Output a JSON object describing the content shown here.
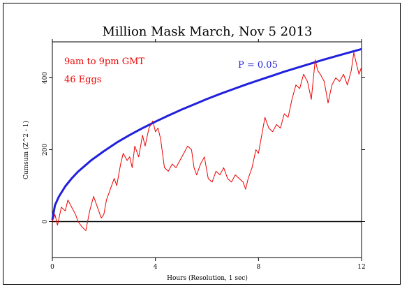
{
  "chart_data": {
    "type": "line",
    "title": "Million Mask March, Nov 5 2013",
    "xlabel": "Hours (Resolution, 1 sec)",
    "ylabel": "Cumsum (Z^2 - 1)",
    "xlim": [
      0,
      12
    ],
    "ylim": [
      -100,
      500
    ],
    "x_ticks": [
      0,
      4,
      8,
      12
    ],
    "y_ticks": [
      0,
      200,
      400
    ],
    "annotations": [
      "9am to 9pm GMT",
      "46 Eggs"
    ],
    "grid": false,
    "series": [
      {
        "name": "P = 0.05",
        "color": "#2020dd",
        "x": [
          0,
          0.1,
          0.25,
          0.5,
          0.75,
          1,
          1.5,
          2,
          2.5,
          3,
          3.5,
          4,
          4.5,
          5,
          5.5,
          6,
          6.5,
          7,
          7.5,
          8,
          8.5,
          9,
          9.5,
          10,
          10.5,
          11,
          11.5,
          12
        ],
        "y": [
          5,
          45,
          69,
          98,
          120,
          139,
          170,
          196,
          220,
          241,
          260,
          278,
          295,
          311,
          326,
          341,
          355,
          368,
          381,
          393,
          405,
          417,
          428,
          439,
          450,
          460,
          470,
          480
        ]
      },
      {
        "name": "Cumsum",
        "color": "#ee0000",
        "x": [
          0,
          0.1,
          0.2,
          0.35,
          0.5,
          0.6,
          0.75,
          0.9,
          1.0,
          1.15,
          1.3,
          1.45,
          1.6,
          1.75,
          1.9,
          2.0,
          2.1,
          2.25,
          2.4,
          2.5,
          2.65,
          2.75,
          2.9,
          3.0,
          3.1,
          3.2,
          3.35,
          3.5,
          3.6,
          3.75,
          3.9,
          4.0,
          4.1,
          4.2,
          4.35,
          4.5,
          4.65,
          4.8,
          4.95,
          5.1,
          5.25,
          5.4,
          5.5,
          5.6,
          5.75,
          5.9,
          6.05,
          6.2,
          6.35,
          6.5,
          6.65,
          6.8,
          6.95,
          7.1,
          7.25,
          7.4,
          7.5,
          7.6,
          7.75,
          7.9,
          8.0,
          8.1,
          8.25,
          8.4,
          8.55,
          8.7,
          8.85,
          9.0,
          9.15,
          9.3,
          9.45,
          9.6,
          9.75,
          9.9,
          10.05,
          10.2,
          10.3,
          10.4,
          10.55,
          10.7,
          10.85,
          11.0,
          11.15,
          11.3,
          11.45,
          11.6,
          11.7,
          11.8,
          11.9,
          12.0
        ],
        "y": [
          0,
          20,
          -10,
          40,
          30,
          60,
          40,
          20,
          0,
          -15,
          -25,
          30,
          70,
          40,
          10,
          20,
          60,
          90,
          120,
          100,
          160,
          190,
          170,
          180,
          150,
          210,
          180,
          240,
          210,
          260,
          280,
          250,
          260,
          230,
          150,
          140,
          160,
          150,
          170,
          190,
          210,
          200,
          150,
          130,
          160,
          180,
          120,
          110,
          140,
          130,
          150,
          120,
          110,
          130,
          120,
          110,
          90,
          120,
          150,
          200,
          190,
          230,
          290,
          260,
          250,
          270,
          260,
          300,
          290,
          340,
          380,
          370,
          410,
          390,
          340,
          450,
          420,
          410,
          390,
          330,
          380,
          400,
          390,
          410,
          380,
          420,
          470,
          440,
          410,
          430
        ]
      }
    ]
  }
}
